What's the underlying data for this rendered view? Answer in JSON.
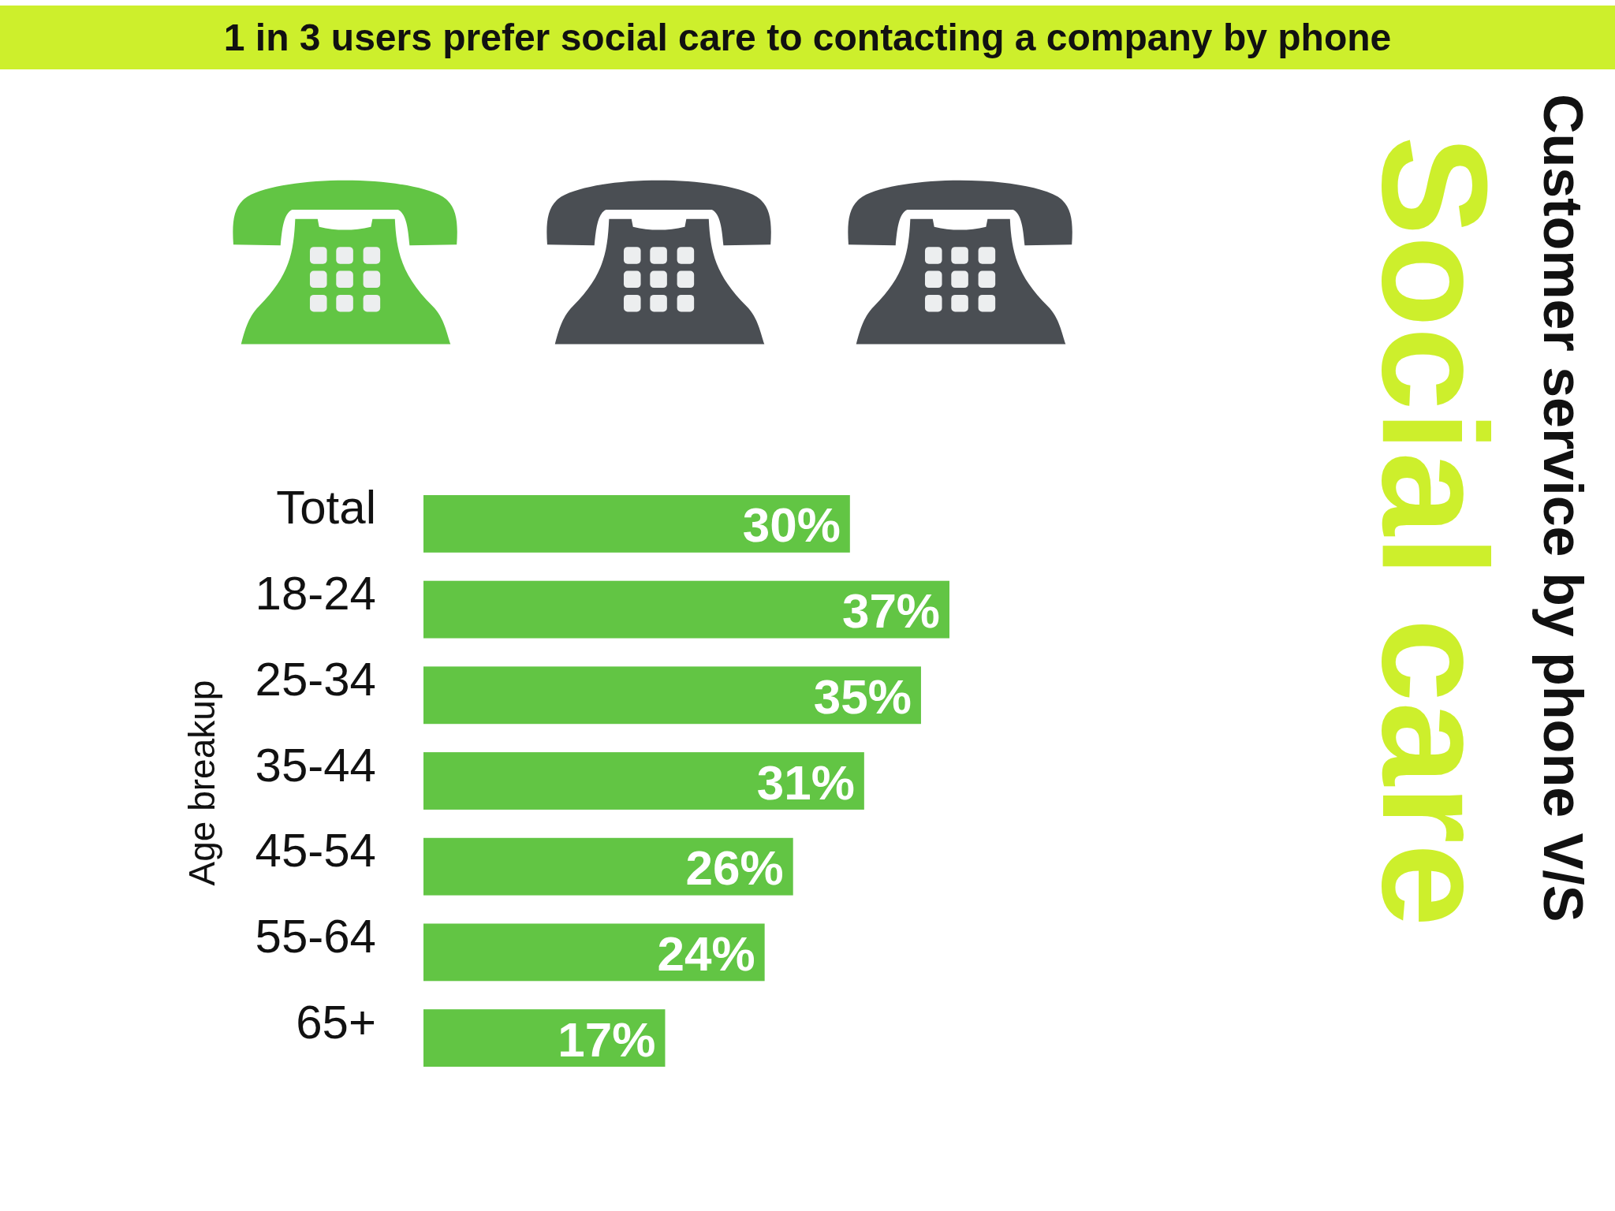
{
  "chart_data": {
    "type": "bar",
    "orientation": "horizontal",
    "title": "1 in 3 users prefer social care to contacting a company by phone",
    "subtitle": "Customer service by phone V/S",
    "annotations": [
      "Social care"
    ],
    "ylabel": "Age breakup",
    "categories": [
      "Total",
      "18-24",
      "25-34",
      "35-44",
      "45-54",
      "55-64",
      "65+"
    ],
    "values": [
      30,
      37,
      35,
      31,
      26,
      24,
      17
    ],
    "value_labels": [
      "30%",
      "37%",
      "35%",
      "31%",
      "26%",
      "24%",
      "17%"
    ],
    "color": "#62c544",
    "tick_labels": "y"
  }
}
